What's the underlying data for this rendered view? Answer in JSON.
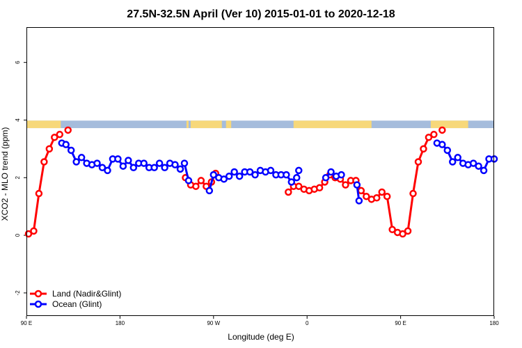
{
  "chart_data": {
    "type": "line",
    "title": "27.5N-32.5N April (Ver 10)   2015-01-01 to 2020-12-18",
    "xlabel": "Longitude (deg E)",
    "ylabel": "XCO2 - MLO trend (ppm)",
    "xlim": [
      90,
      540
    ],
    "ylim": [
      -2.8,
      7.2
    ],
    "x_ticks": [
      {
        "value": 90,
        "label": "90 E"
      },
      {
        "value": 180,
        "label": "180"
      },
      {
        "value": 270,
        "label": "90 W"
      },
      {
        "value": 360,
        "label": "0"
      },
      {
        "value": 450,
        "label": "90 E"
      },
      {
        "value": 540,
        "label": "180"
      }
    ],
    "y_ticks": [
      {
        "value": -2,
        "label": "-2"
      },
      {
        "value": 0,
        "label": "0"
      },
      {
        "value": 2,
        "label": "2"
      },
      {
        "value": 4,
        "label": "4"
      },
      {
        "value": 6,
        "label": "6"
      }
    ],
    "land_mask": {
      "y_range": [
        3.72,
        3.98
      ],
      "land_color": "#f7d87a",
      "ocean_color": "#a5bcdc",
      "land_intervals": [
        [
          90,
          123
        ],
        [
          244,
          246
        ],
        [
          248,
          278
        ],
        [
          282,
          287
        ],
        [
          347,
          422
        ],
        [
          479,
          515
        ]
      ]
    },
    "legend_position": "bottom-left",
    "series": [
      {
        "name": "Land (Nadir&Glint)",
        "color": "#ff0000",
        "segments": [
          [
            [
              92,
              0.05
            ],
            [
              97,
              0.15
            ],
            [
              102,
              1.45
            ],
            [
              107,
              2.55
            ],
            [
              112,
              3.0
            ],
            [
              117,
              3.4
            ],
            [
              122,
              3.5
            ]
          ],
          [
            [
              130,
              3.65
            ]
          ],
          [
            [
              243,
              2.0
            ],
            [
              248,
              1.75
            ],
            [
              253,
              1.7
            ],
            [
              258,
              1.9
            ],
            [
              263,
              1.7
            ],
            [
              268,
              1.85
            ],
            [
              272,
              2.15
            ]
          ],
          [
            [
              342,
              1.5
            ],
            [
              347,
              1.7
            ],
            [
              352,
              1.7
            ],
            [
              357,
              1.6
            ],
            [
              362,
              1.55
            ],
            [
              367,
              1.6
            ],
            [
              372,
              1.65
            ],
            [
              377,
              1.85
            ],
            [
              382,
              2.1
            ],
            [
              387,
              2.0
            ],
            [
              392,
              1.95
            ],
            [
              397,
              1.75
            ],
            [
              402,
              1.9
            ],
            [
              407,
              1.9
            ],
            [
              412,
              1.55
            ],
            [
              417,
              1.35
            ],
            [
              422,
              1.25
            ],
            [
              427,
              1.3
            ],
            [
              432,
              1.5
            ],
            [
              437,
              1.35
            ],
            [
              442,
              0.2
            ],
            [
              447,
              0.1
            ],
            [
              452,
              0.05
            ],
            [
              457,
              0.15
            ],
            [
              462,
              1.45
            ],
            [
              467,
              2.55
            ],
            [
              472,
              3.0
            ],
            [
              477,
              3.4
            ],
            [
              482,
              3.5
            ]
          ],
          [
            [
              490,
              3.65
            ]
          ]
        ]
      },
      {
        "name": "Ocean (Glint)",
        "color": "#0000ff",
        "segments": [
          [
            [
              124,
              3.2
            ],
            [
              128,
              3.15
            ],
            [
              133,
              2.95
            ],
            [
              138,
              2.55
            ],
            [
              143,
              2.7
            ],
            [
              148,
              2.5
            ],
            [
              153,
              2.45
            ],
            [
              158,
              2.5
            ],
            [
              163,
              2.35
            ],
            [
              168,
              2.25
            ],
            [
              173,
              2.65
            ],
            [
              178,
              2.65
            ],
            [
              183,
              2.4
            ],
            [
              188,
              2.6
            ],
            [
              193,
              2.35
            ],
            [
              198,
              2.5
            ],
            [
              203,
              2.5
            ],
            [
              208,
              2.35
            ],
            [
              213,
              2.35
            ],
            [
              218,
              2.5
            ],
            [
              223,
              2.35
            ],
            [
              228,
              2.5
            ],
            [
              233,
              2.45
            ],
            [
              238,
              2.3
            ],
            [
              242,
              2.5
            ],
            [
              246,
              1.9
            ]
          ],
          [
            [
              266,
              1.55
            ],
            [
              270,
              2.1
            ],
            [
              275,
              2.0
            ],
            [
              280,
              1.95
            ],
            [
              285,
              2.05
            ],
            [
              290,
              2.2
            ],
            [
              295,
              2.05
            ],
            [
              300,
              2.2
            ],
            [
              305,
              2.2
            ],
            [
              310,
              2.1
            ],
            [
              315,
              2.25
            ],
            [
              320,
              2.2
            ],
            [
              325,
              2.25
            ],
            [
              330,
              2.1
            ],
            [
              335,
              2.1
            ],
            [
              340,
              2.1
            ],
            [
              345,
              1.85
            ],
            [
              350,
              2.0
            ],
            [
              352,
              2.25
            ]
          ],
          [
            [
              378,
              2.0
            ],
            [
              383,
              2.2
            ],
            [
              388,
              2.05
            ],
            [
              393,
              2.1
            ]
          ],
          [
            [
              408,
              1.75
            ],
            [
              410,
              1.2
            ]
          ],
          [
            [
              485,
              3.2
            ],
            [
              490,
              3.15
            ],
            [
              495,
              2.95
            ],
            [
              500,
              2.55
            ],
            [
              505,
              2.7
            ],
            [
              510,
              2.5
            ],
            [
              515,
              2.45
            ],
            [
              520,
              2.5
            ],
            [
              525,
              2.4
            ],
            [
              530,
              2.25
            ],
            [
              535,
              2.65
            ],
            [
              540,
              2.65
            ]
          ]
        ]
      }
    ]
  }
}
